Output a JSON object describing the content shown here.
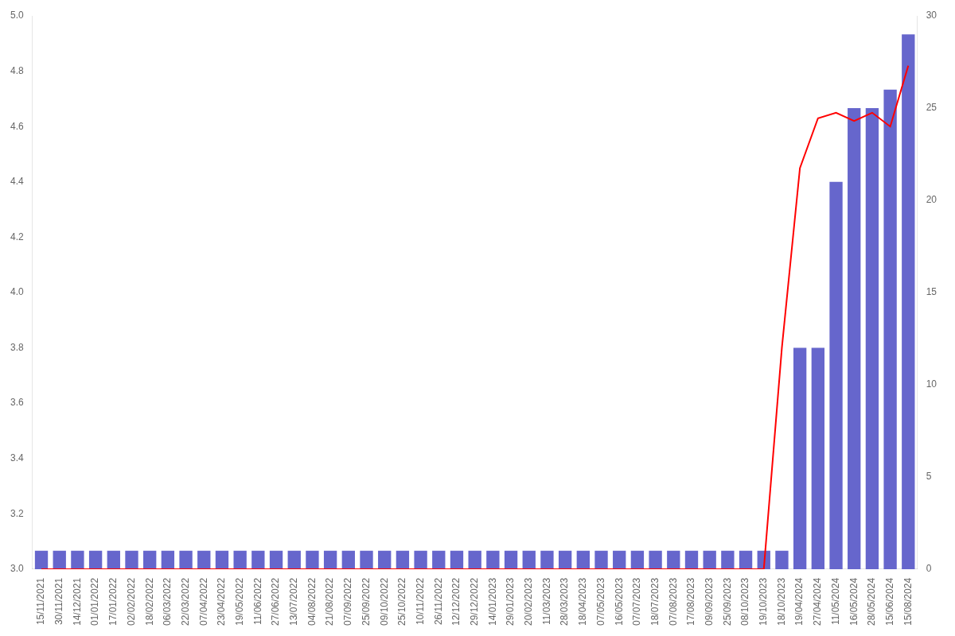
{
  "chart_data": {
    "type": "bar",
    "categories": [
      "15/11/2021",
      "30/11/2021",
      "14/12/2021",
      "01/01/2022",
      "17/01/2022",
      "02/02/2022",
      "18/02/2022",
      "06/03/2022",
      "22/03/2022",
      "07/04/2022",
      "23/04/2022",
      "19/05/2022",
      "11/06/2022",
      "27/06/2022",
      "13/07/2022",
      "04/08/2022",
      "21/08/2022",
      "07/09/2022",
      "25/09/2022",
      "09/10/2022",
      "25/10/2022",
      "10/11/2022",
      "26/11/2022",
      "12/12/2022",
      "29/12/2022",
      "14/01/2023",
      "29/01/2023",
      "20/02/2023",
      "11/03/2023",
      "28/03/2023",
      "18/04/2023",
      "07/05/2023",
      "16/05/2023",
      "07/07/2023",
      "18/07/2023",
      "07/08/2023",
      "17/08/2023",
      "09/09/2023",
      "25/09/2023",
      "08/10/2023",
      "19/10/2023",
      "18/10/2023",
      "19/04/2024",
      "27/04/2024",
      "11/05/2024",
      "16/05/2024",
      "28/05/2024",
      "15/06/2024",
      "15/08/2024"
    ],
    "series": [
      {
        "type": "bar",
        "color": "#6666cc",
        "axis": "y2",
        "values": [
          1,
          1,
          1,
          1,
          1,
          1,
          1,
          1,
          1,
          1,
          1,
          1,
          1,
          1,
          1,
          1,
          1,
          1,
          1,
          1,
          1,
          1,
          1,
          1,
          1,
          1,
          1,
          1,
          1,
          1,
          1,
          1,
          1,
          1,
          1,
          1,
          1,
          1,
          1,
          1,
          1,
          1,
          12,
          12,
          21,
          25,
          25,
          26,
          29
        ]
      },
      {
        "type": "line",
        "color": "#ff0000",
        "values": [
          3.0,
          3.0,
          3.0,
          3.0,
          3.0,
          3.0,
          3.0,
          3.0,
          3.0,
          3.0,
          3.0,
          3.0,
          3.0,
          3.0,
          3.0,
          3.0,
          3.0,
          3.0,
          3.0,
          3.0,
          3.0,
          3.0,
          3.0,
          3.0,
          3.0,
          3.0,
          3.0,
          3.0,
          3.0,
          3.0,
          3.0,
          3.0,
          3.0,
          3.0,
          3.0,
          3.0,
          3.0,
          3.0,
          3.0,
          3.0,
          3.0,
          3.8,
          4.45,
          4.63,
          4.65,
          4.62,
          4.65,
          4.6,
          4.82
        ]
      }
    ],
    "ylim": [
      3.0,
      5.0
    ],
    "yticks": [
      {
        "value": 3.0,
        "label": "3.0"
      },
      3.2,
      3.4,
      3.6,
      3.8,
      {
        "value": 4.0,
        "label": "4.0"
      },
      4.2,
      4.4,
      4.6,
      4.8,
      {
        "value": 5.0,
        "label": "5.0"
      }
    ],
    "y2lim": [
      0,
      30
    ],
    "y2ticks": [
      0,
      5,
      10,
      15,
      20,
      25,
      30
    ],
    "grid": false
  }
}
